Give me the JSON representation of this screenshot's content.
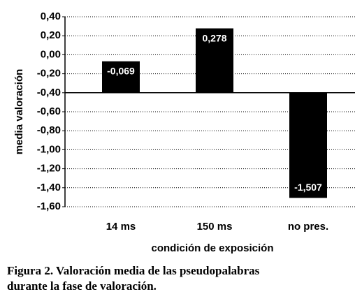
{
  "chart_data": {
    "type": "bar",
    "x_label": "condición de exposición",
    "y_label": "media valoración",
    "categories": [
      "14 ms",
      "150 ms",
      "no pres."
    ],
    "values": [
      -0.069,
      0.278,
      -1.507
    ],
    "value_labels": [
      "-0,069",
      "0,278",
      "-1,507"
    ],
    "color": "#000000",
    "bar_base": -0.4,
    "ylim": [
      -1.6,
      0.4
    ],
    "yticks": [
      {
        "value": 0.4,
        "label": "0,40"
      },
      {
        "value": 0.2,
        "label": "0,20"
      },
      {
        "value": 0,
        "label": "0,00"
      },
      {
        "value": -0.2,
        "label": "-0,20"
      },
      {
        "value": -0.4,
        "label": "-0,40"
      },
      {
        "value": -0.6,
        "label": "-0,60"
      },
      {
        "value": -0.8,
        "label": "-0,80"
      },
      {
        "value": -1,
        "label": "-1,00"
      },
      {
        "value": -1.2,
        "label": "-1,20"
      },
      {
        "value": -1.4,
        "label": "-1,40"
      },
      {
        "value": -1.6,
        "label": "-1,60"
      }
    ],
    "grid": true,
    "caption": [
      "Figura 2. Valoración media de las pseudopalabras",
      "durante la fase de valoración."
    ]
  }
}
